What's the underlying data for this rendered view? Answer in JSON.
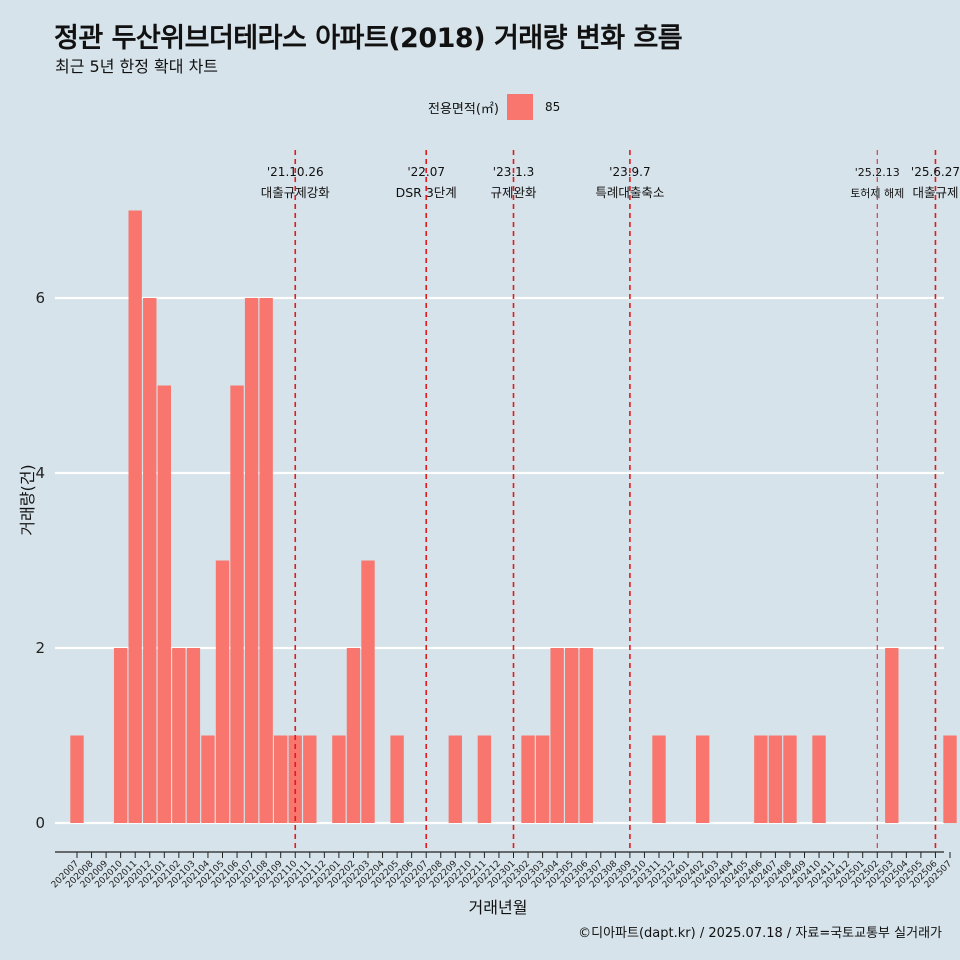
{
  "title": "정관 두산위브더테라스 아파트(2018) 거래량 변화 흐름",
  "subtitle": "최근 5년 한정 확대 차트",
  "caption": "©디아파트(dapt.kr) / 2025.07.18 / 자료=국토교통부 실거래가",
  "legend": {
    "title": "전용면적(㎡)",
    "item": "85",
    "color": "#f8766d"
  },
  "colors": {
    "bar": "#f8766d",
    "background": "#d6e3ea",
    "grid": "#ffffff",
    "event_line": "#e31a1c"
  },
  "chart_data": {
    "type": "bar",
    "xlabel": "거래년월",
    "ylabel": "거래량(건)",
    "ylim": [
      0,
      7.4
    ],
    "yticks": [
      0,
      2,
      4,
      6
    ],
    "grid": true,
    "legend_position": "top",
    "categories": [
      "202007",
      "202008",
      "202009",
      "202010",
      "202011",
      "202012",
      "202101",
      "202102",
      "202103",
      "202104",
      "202105",
      "202106",
      "202107",
      "202108",
      "202109",
      "202110",
      "202111",
      "202112",
      "202201",
      "202202",
      "202203",
      "202204",
      "202205",
      "202206",
      "202207",
      "202208",
      "202209",
      "202210",
      "202211",
      "202212",
      "202301",
      "202302",
      "202303",
      "202304",
      "202305",
      "202306",
      "202307",
      "202308",
      "202309",
      "202310",
      "202311",
      "202312",
      "202401",
      "202402",
      "202403",
      "202404",
      "202405",
      "202406",
      "202407",
      "202408",
      "202409",
      "202410",
      "202411",
      "202412",
      "202501",
      "202502",
      "202503",
      "202504",
      "202505",
      "202506",
      "202507"
    ],
    "series": [
      {
        "name": "85",
        "values": [
          1,
          0,
          0,
          2,
          7,
          6,
          5,
          2,
          2,
          1,
          3,
          5,
          6,
          6,
          1,
          1,
          1,
          0,
          1,
          2,
          3,
          0,
          1,
          0,
          0,
          0,
          1,
          0,
          1,
          0,
          0,
          1,
          1,
          2,
          2,
          2,
          0,
          0,
          0,
          0,
          1,
          0,
          0,
          1,
          0,
          0,
          0,
          1,
          1,
          1,
          0,
          1,
          0,
          0,
          0,
          0,
          2,
          0,
          0,
          0,
          1
        ]
      }
    ],
    "annotations": [
      {
        "x": "202110",
        "date": "'21.10.26",
        "label": "대출규제강화"
      },
      {
        "x": "202207",
        "date": "'22.07",
        "label": "DSR 3단계"
      },
      {
        "x": "202301",
        "date": "'23.1.3",
        "label": "규제완화"
      },
      {
        "x": "202309",
        "date": "'23.9.7",
        "label": "특례대출축소"
      },
      {
        "x": "202502",
        "date": "'25.2.13",
        "label": "토허제 해제"
      },
      {
        "x": "202506",
        "date": "'25.6.27",
        "label": "대출규제"
      }
    ]
  }
}
